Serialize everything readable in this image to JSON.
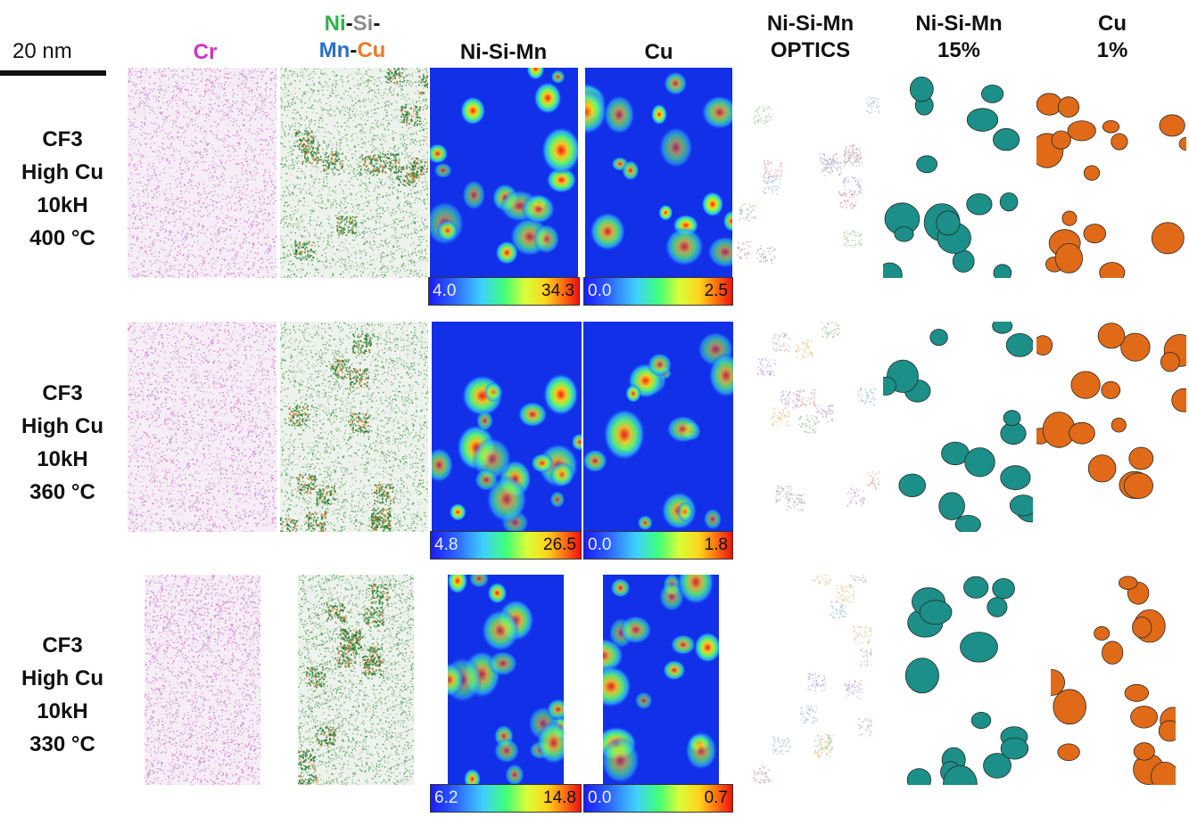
{
  "scale_bar": {
    "label": "20 nm"
  },
  "columns": {
    "cr": {
      "text": "Cr",
      "color": "#cc33cc"
    },
    "combined": {
      "ni": "Ni",
      "dash1": "-",
      "si": "Si",
      "dash2": "-",
      "mn": "Mn",
      "dash3": "-",
      "cu": "Cu",
      "colors": {
        "ni": "#2db34a",
        "si": "#8c8c8c",
        "mn": "#2a6fc9",
        "cu": "#f07a2a"
      }
    },
    "nisimn_map": "Ni-Si-Mn",
    "cu_map": "Cu",
    "optics": {
      "line1": "Ni-Si-Mn",
      "line2": "OPTICS"
    },
    "nisimn_iso": {
      "line1": "Ni-Si-Mn",
      "line2": "15%"
    },
    "cu_iso": {
      "line1": "Cu",
      "line2": "1%"
    }
  },
  "rows": [
    {
      "lines": [
        "CF3",
        "High Cu",
        "10kH",
        "400 °C"
      ],
      "nisimn_scale": {
        "min": "4.0",
        "max": "34.3"
      },
      "cu_scale": {
        "min": "0.0",
        "max": "2.5"
      }
    },
    {
      "lines": [
        "CF3",
        "High Cu",
        "10kH",
        "360 °C"
      ],
      "nisimn_scale": {
        "min": "4.8",
        "max": "26.5"
      },
      "cu_scale": {
        "min": "0.0",
        "max": "1.8"
      }
    },
    {
      "lines": [
        "CF3",
        "High Cu",
        "10kH",
        "330 °C"
      ],
      "nisimn_scale": {
        "min": "6.2",
        "max": "14.8"
      },
      "cu_scale": {
        "min": "0.0",
        "max": "0.7"
      }
    }
  ],
  "colors": {
    "cr_dot": "#d36cd3",
    "ni_dot": "#3a9a45",
    "map_bg": "#1230e8",
    "iso_nisimn": "#1b8f88",
    "iso_cu": "#e06a18"
  }
}
